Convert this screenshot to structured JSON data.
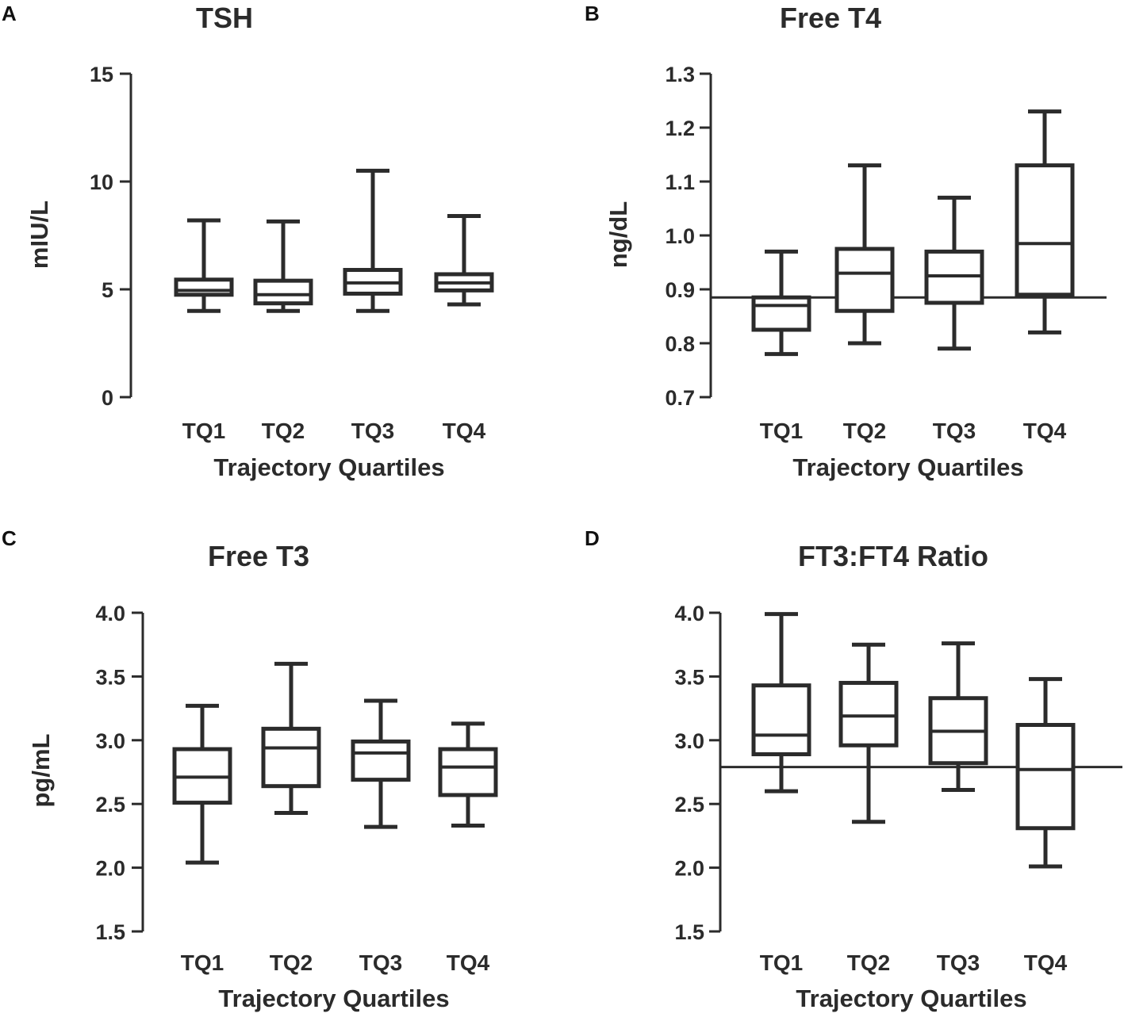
{
  "figure": {
    "panel_labels": [
      "A",
      "B",
      "C",
      "D"
    ]
  },
  "chart_data": [
    {
      "panel": "A",
      "type": "box",
      "title": "TSH",
      "ylabel": "mIU/L",
      "xlabel": "Trajectory Quartiles",
      "ylim": [
        0,
        15
      ],
      "yticks": [
        0,
        5,
        10,
        15
      ],
      "tick_labels": [
        "0",
        "5",
        "10",
        "15"
      ],
      "categories": [
        "TQ1",
        "TQ2",
        "TQ3",
        "TQ4"
      ],
      "boxes": [
        {
          "min": 4.0,
          "q1": 4.75,
          "median": 4.95,
          "q3": 5.45,
          "max": 8.2
        },
        {
          "min": 4.0,
          "q1": 4.35,
          "median": 4.75,
          "q3": 5.4,
          "max": 8.15
        },
        {
          "min": 4.0,
          "q1": 4.8,
          "median": 5.3,
          "q3": 5.9,
          "max": 10.5
        },
        {
          "min": 4.3,
          "q1": 4.95,
          "median": 5.3,
          "q3": 5.7,
          "max": 8.4
        }
      ],
      "reference_line": null
    },
    {
      "panel": "B",
      "type": "box",
      "title": "Free T4",
      "ylabel": "ng/dL",
      "xlabel": "Trajectory Quartiles",
      "ylim": [
        0.7,
        1.3
      ],
      "yticks": [
        0.7,
        0.8,
        0.9,
        1.0,
        1.1,
        1.2,
        1.3
      ],
      "tick_labels": [
        "0.7",
        "0.8",
        "0.9",
        "1.0",
        "1.1",
        "1.2",
        "1.3"
      ],
      "categories": [
        "TQ1",
        "TQ2",
        "TQ3",
        "TQ4"
      ],
      "boxes": [
        {
          "min": 0.78,
          "q1": 0.825,
          "median": 0.87,
          "q3": 0.885,
          "max": 0.97
        },
        {
          "min": 0.8,
          "q1": 0.86,
          "median": 0.93,
          "q3": 0.975,
          "max": 1.13
        },
        {
          "min": 0.79,
          "q1": 0.875,
          "median": 0.925,
          "q3": 0.97,
          "max": 1.07
        },
        {
          "min": 0.82,
          "q1": 0.89,
          "median": 0.985,
          "q3": 1.13,
          "max": 1.23
        }
      ],
      "reference_line": 0.885
    },
    {
      "panel": "C",
      "type": "box",
      "title": "Free T3",
      "ylabel": "pg/mL",
      "xlabel": "Trajectory Quartiles",
      "ylim": [
        1.5,
        4.0
      ],
      "yticks": [
        1.5,
        2.0,
        2.5,
        3.0,
        3.5,
        4.0
      ],
      "tick_labels": [
        "1.5",
        "2.0",
        "2.5",
        "3.0",
        "3.5",
        "4.0"
      ],
      "categories": [
        "TQ1",
        "TQ2",
        "TQ3",
        "TQ4"
      ],
      "boxes": [
        {
          "min": 2.04,
          "q1": 2.51,
          "median": 2.71,
          "q3": 2.93,
          "max": 3.27
        },
        {
          "min": 2.43,
          "q1": 2.64,
          "median": 2.94,
          "q3": 3.09,
          "max": 3.6
        },
        {
          "min": 2.32,
          "q1": 2.69,
          "median": 2.9,
          "q3": 2.99,
          "max": 3.31
        },
        {
          "min": 2.33,
          "q1": 2.57,
          "median": 2.79,
          "q3": 2.93,
          "max": 3.13
        }
      ],
      "reference_line": null
    },
    {
      "panel": "D",
      "type": "box",
      "title": "FT3:FT4 Ratio",
      "ylabel": "",
      "xlabel": "Trajectory Quartiles",
      "ylim": [
        1.5,
        4.0
      ],
      "yticks": [
        1.5,
        2.0,
        2.5,
        3.0,
        3.5,
        4.0
      ],
      "tick_labels": [
        "1.5",
        "2.0",
        "2.5",
        "3.0",
        "3.5",
        "4.0"
      ],
      "categories": [
        "TQ1",
        "TQ2",
        "TQ3",
        "TQ4"
      ],
      "boxes": [
        {
          "min": 2.6,
          "q1": 2.89,
          "median": 3.04,
          "q3": 3.43,
          "max": 3.99
        },
        {
          "min": 2.36,
          "q1": 2.96,
          "median": 3.19,
          "q3": 3.45,
          "max": 3.75
        },
        {
          "min": 2.61,
          "q1": 2.82,
          "median": 3.07,
          "q3": 3.33,
          "max": 3.76
        },
        {
          "min": 2.01,
          "q1": 2.31,
          "median": 2.77,
          "q3": 3.12,
          "max": 3.48
        }
      ],
      "reference_line": 2.79
    }
  ]
}
